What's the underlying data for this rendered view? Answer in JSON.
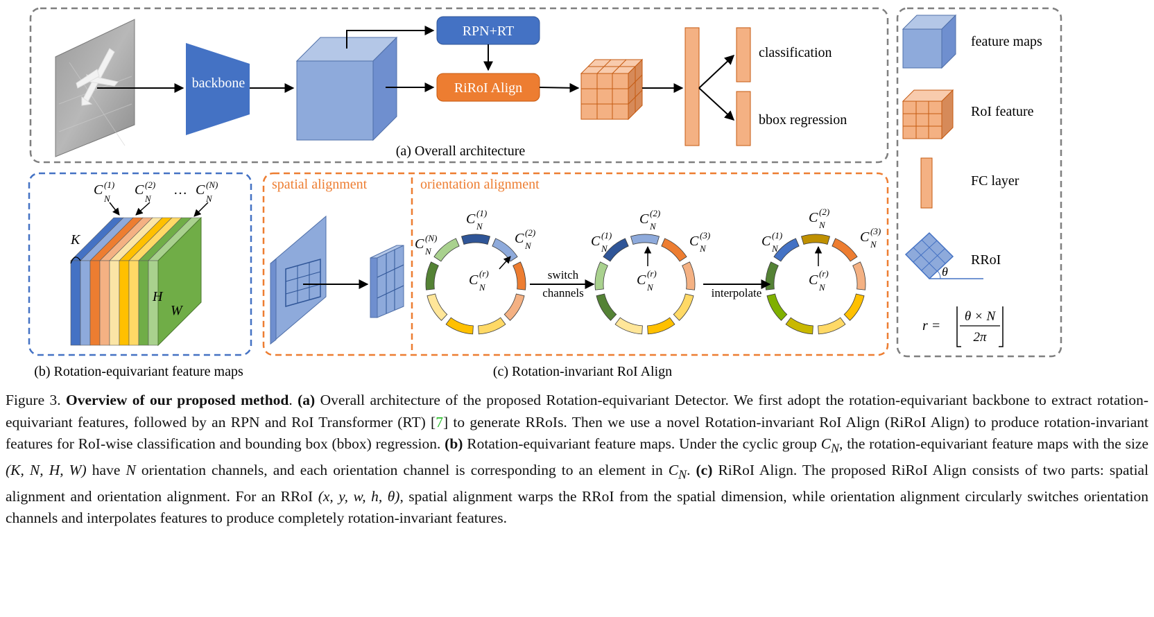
{
  "panel_a": {
    "backbone": "backbone",
    "rpn": "RPN+RT",
    "riroi": "RiRoI Align",
    "cls": "classification",
    "bbox": "bbox regression",
    "caption": "(a) Overall architecture"
  },
  "legend": {
    "feature_maps": "feature maps",
    "roi_feature": "RoI feature",
    "fc_layer": "FC layer",
    "rroi": "RRoI",
    "theta": "θ",
    "formula_lhs": "r =",
    "formula_num": "θ × N",
    "formula_den": "2π"
  },
  "panel_b": {
    "caption": "(b) Rotation-equivariant feature maps",
    "c_base": "C",
    "sub": "N",
    "sup1": "(1)",
    "sup2": "(2)",
    "supN": "(N)",
    "dots": "…",
    "k": "K",
    "h": "H",
    "w": "W"
  },
  "panel_c": {
    "spatial": "spatial alignment",
    "orientation": "orientation alignment",
    "switch1": "switch",
    "switch2": "channels",
    "interp": "interpolate",
    "caption": "(c) Rotation-invariant RoI Align",
    "sup1": "(1)",
    "sup2": "(2)",
    "sup3": "(3)",
    "supN": "(N)",
    "supr": "(r)"
  },
  "caption": {
    "fig": "Figure 3.",
    "title": "Overview of our proposed method",
    "a_tag": "(a)",
    "a_text1": "Overall architecture of the proposed Rotation-equivariant Detector. We first adopt the rotation-equivariant backbone to extract rotation-equivariant features, followed by an RPN and RoI Transformer (RT) [",
    "ref": "7",
    "a_text2": "] to generate RRoIs. Then we use a novel Rotation-invariant RoI Align (RiRoI Align) to produce rotation-invariant features for RoI-wise classification and bounding box (bbox) regression.",
    "b_tag": "(b)",
    "b_text1": "Rotation-equivariant feature maps. Under the cyclic group",
    "cn": "C",
    "cn_sub": "N",
    "b_text2": ", the rotation-equivariant feature maps with the size",
    "size": "(K, N, H, W)",
    "b_text3": "have",
    "n": "N",
    "b_text4": "orientation channels, and each orientation channel is corresponding to an element in",
    "c_tag": "(c)",
    "c_text1": "RiRoI Align. The proposed RiRoI Align consists of two parts: spatial alignment and orientation alignment. For an RRoI",
    "rroi": "(x, y, w, h, θ)",
    "c_text2": ", spatial alignment warps the RRoI from the spatial dimension, while orientation alignment circularly switches orientation channels and interpolates features to produce completely rotation-invariant features."
  },
  "colors": {
    "blue_front": "#8eaadb",
    "blue_top": "#b4c7e7",
    "blue_side": "#6f8fcf",
    "backbone": "#4472c4",
    "orange_btn": "#ed7d31",
    "orange_front": "#f4b183",
    "orange_side": "#d68a59",
    "panel_border_gray": "#7f7f7f",
    "panel_border_blue": "#4472c4",
    "panel_border_orange": "#ed7d31"
  }
}
